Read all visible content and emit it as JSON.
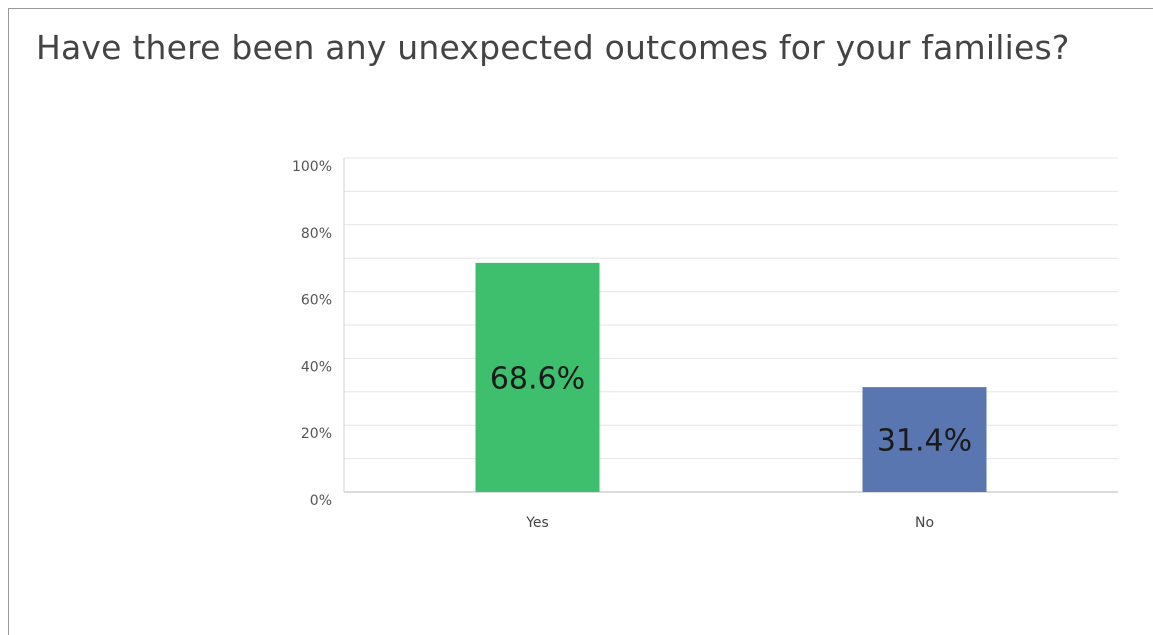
{
  "chart_data": {
    "type": "bar",
    "title": "Have there been any unexpected outcomes for your families?",
    "categories": [
      "Yes",
      "No"
    ],
    "values": [
      68.6,
      31.4
    ],
    "data_labels": [
      "68.6%",
      "31.4%"
    ],
    "colors": [
      "#3dbf6e",
      "#5a76b0"
    ],
    "ylim": [
      0,
      100
    ],
    "yticks": [
      0,
      20,
      40,
      60,
      80,
      100
    ],
    "ytick_labels": [
      "0%",
      "20%",
      "40%",
      "60%",
      "80%",
      "100%"
    ],
    "grid": true,
    "xlabel": "",
    "ylabel": ""
  }
}
